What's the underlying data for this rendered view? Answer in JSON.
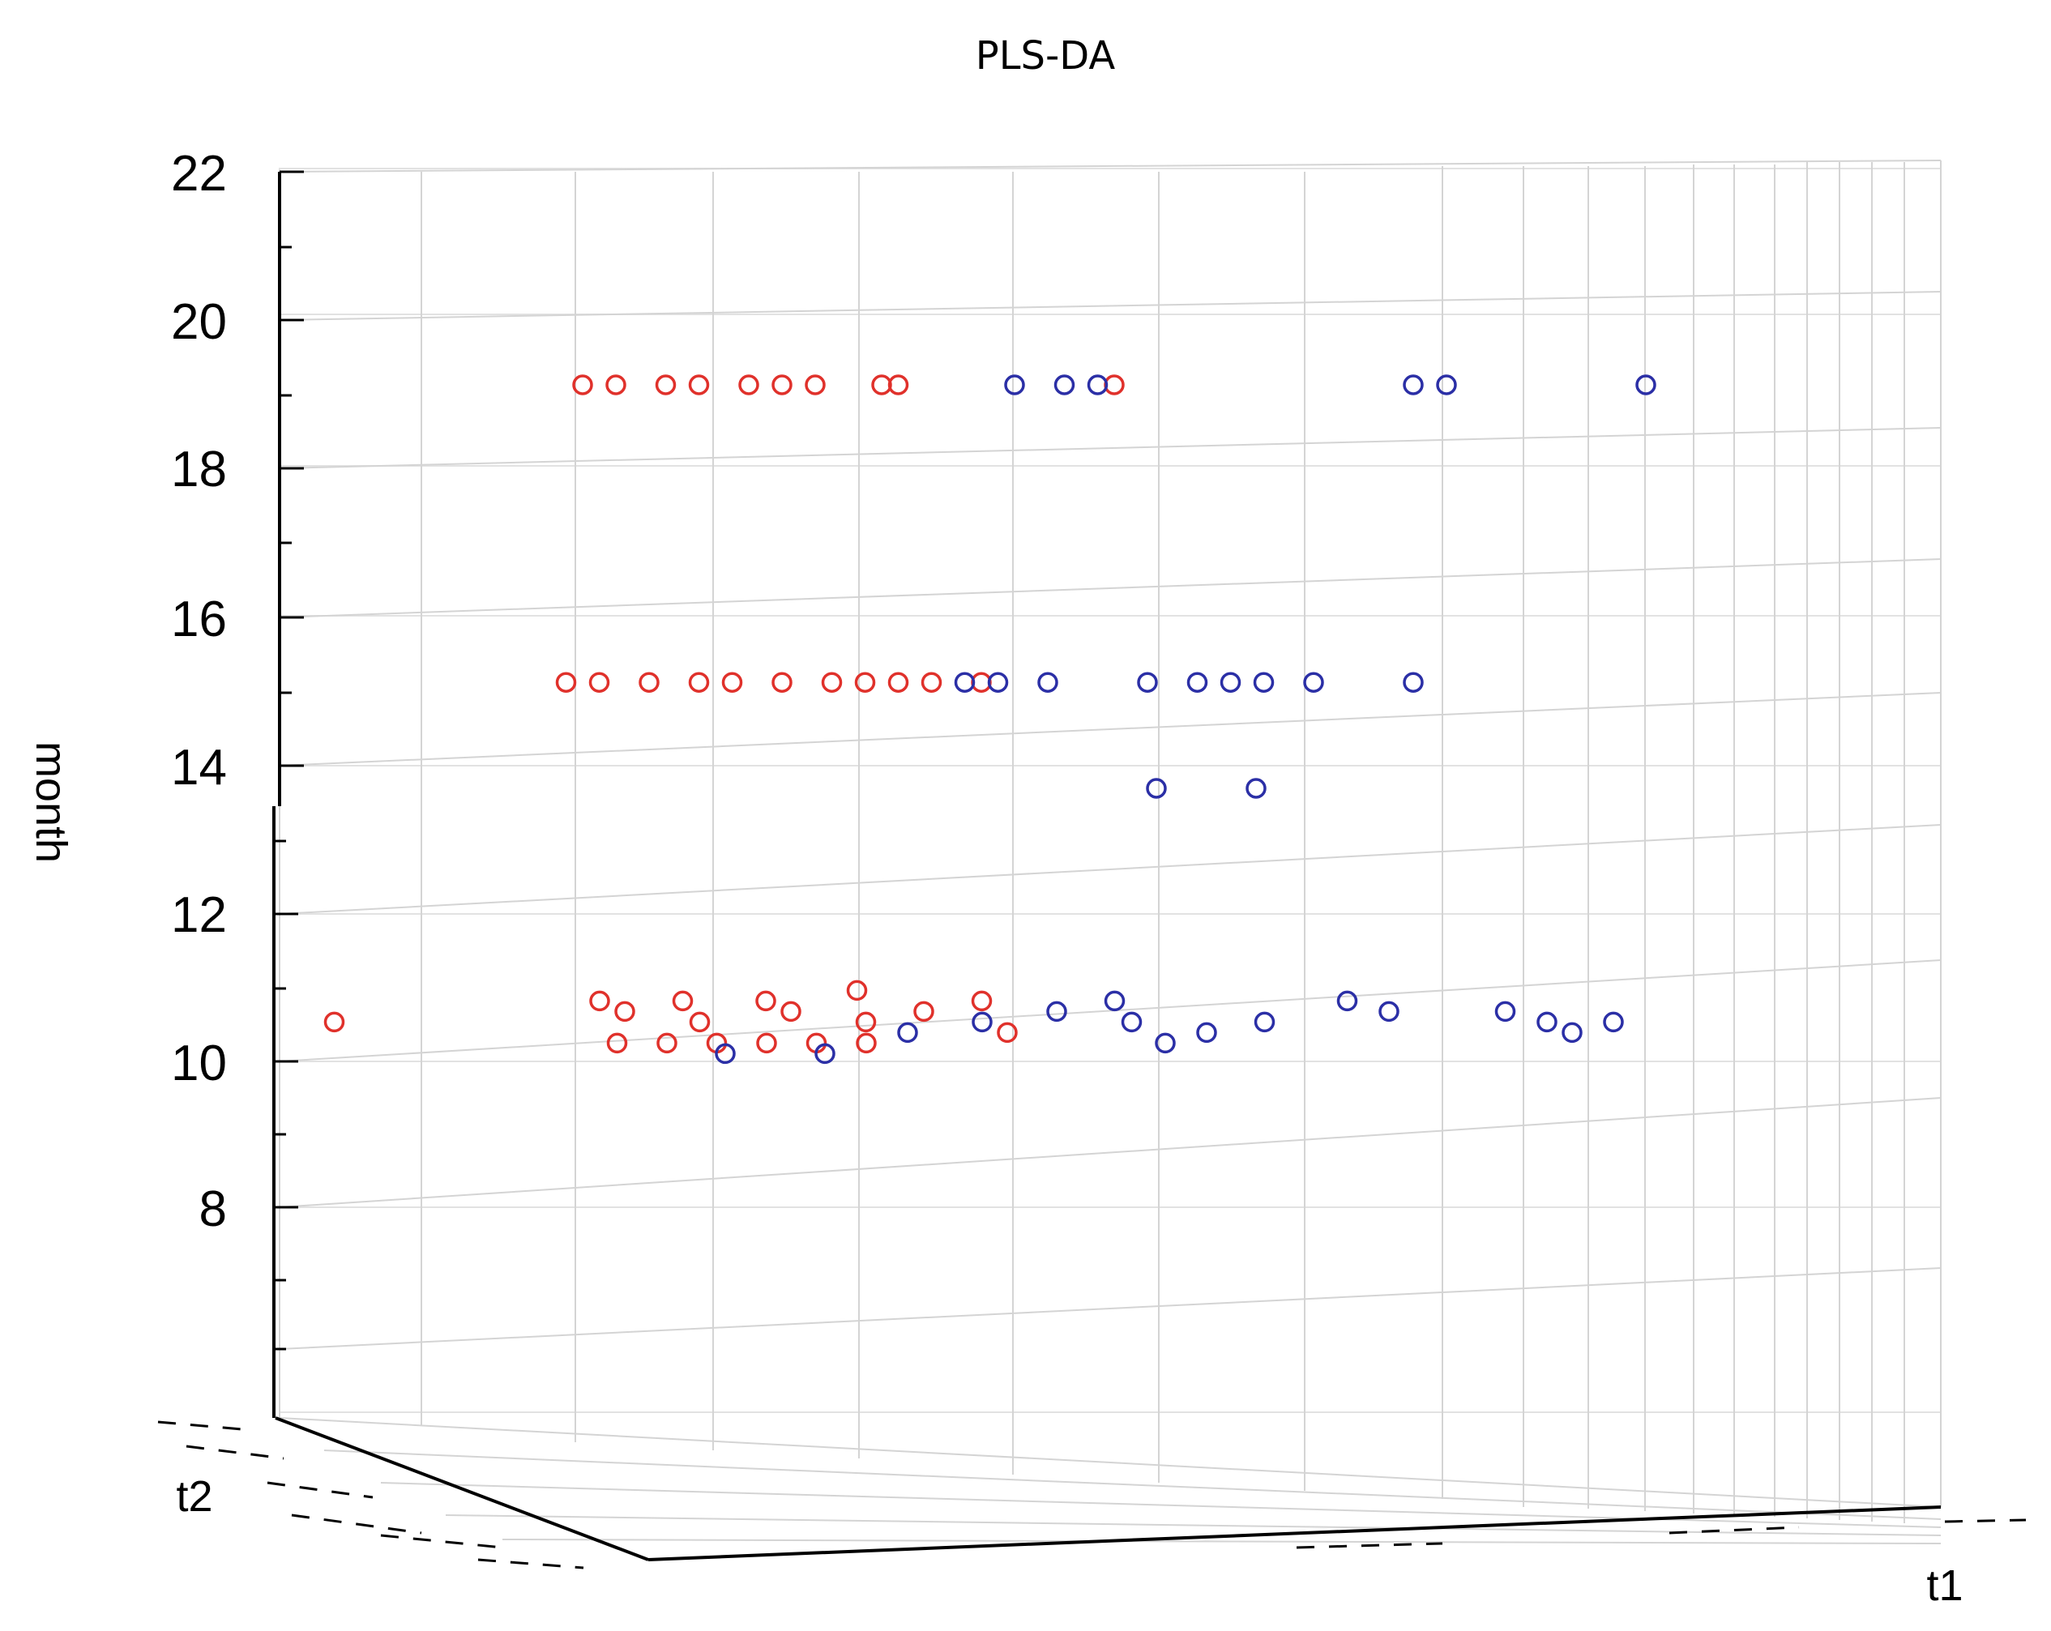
{
  "chart_data": {
    "type": "scatter",
    "subtype": "3d",
    "title": "PLS-DA",
    "zlabel": "month",
    "xlabel": "t1",
    "ylabel": "t2",
    "zlim": [
      6,
      22
    ],
    "z_ticks": [
      "8",
      "10",
      "12",
      "14",
      "16",
      "18",
      "20",
      "22"
    ],
    "marker": "open-circle",
    "series": [
      {
        "color": "#e0312b",
        "points": [
          {
            "t1": 0.09,
            "t2": 0.2,
            "month": 21
          },
          {
            "t1": 0.1,
            "t2": 0.2,
            "month": 21
          },
          {
            "t1": 0.13,
            "t2": 0.2,
            "month": 21
          },
          {
            "t1": 0.16,
            "t2": 0.2,
            "month": 21
          },
          {
            "t1": 0.18,
            "t2": 0.2,
            "month": 21
          },
          {
            "t1": 0.19,
            "t2": 0.2,
            "month": 21
          },
          {
            "t1": 0.21,
            "t2": 0.2,
            "month": 21
          },
          {
            "t1": 0.24,
            "t2": 0.2,
            "month": 21
          },
          {
            "t1": 0.26,
            "t2": 0.2,
            "month": 21
          },
          {
            "t1": 0.27,
            "t2": 0.2,
            "month": 21
          },
          {
            "t1": 0.29,
            "t2": 0.2,
            "month": 21
          },
          {
            "t1": 0.3,
            "t2": 0.2,
            "month": 21
          },
          {
            "t1": 0.08,
            "t2": 0.2,
            "month": 15
          },
          {
            "t1": 0.1,
            "t2": 0.2,
            "month": 15
          },
          {
            "t1": 0.13,
            "t2": 0.2,
            "month": 15
          },
          {
            "t1": 0.15,
            "t2": 0.2,
            "month": 15
          },
          {
            "t1": 0.18,
            "t2": 0.2,
            "month": 15
          },
          {
            "t1": 0.2,
            "t2": 0.2,
            "month": 15
          },
          {
            "t1": 0.22,
            "t2": 0.2,
            "month": 15
          },
          {
            "t1": 0.26,
            "t2": 0.2,
            "month": 15
          },
          {
            "t1": 0.27,
            "t2": 0.2,
            "month": 15
          },
          {
            "t1": 0.4,
            "t2": 0.2,
            "month": 15
          },
          {
            "t1": 0.07,
            "t2": 0.2,
            "month": 11
          },
          {
            "t1": 0.09,
            "t2": 0.2,
            "month": 11
          },
          {
            "t1": 0.12,
            "t2": 0.2,
            "month": 11
          },
          {
            "t1": 0.15,
            "t2": 0.2,
            "month": 11
          },
          {
            "t1": 0.17,
            "t2": 0.2,
            "month": 11
          },
          {
            "t1": 0.2,
            "t2": 0.2,
            "month": 11
          },
          {
            "t1": 0.23,
            "t2": 0.2,
            "month": 11
          },
          {
            "t1": 0.25,
            "t2": 0.2,
            "month": 11
          },
          {
            "t1": 0.27,
            "t2": 0.2,
            "month": 11
          },
          {
            "t1": 0.29,
            "t2": 0.2,
            "month": 11
          },
          {
            "t1": 0.32,
            "t2": 0.2,
            "month": 11
          },
          {
            "t1": 0.1,
            "t2": 0.4,
            "month": 7
          },
          {
            "t1": 0.12,
            "t2": 0.5,
            "month": 7
          },
          {
            "t1": 0.15,
            "t2": 0.4,
            "month": 7
          },
          {
            "t1": 0.17,
            "t2": 0.6,
            "month": 7
          },
          {
            "t1": 0.2,
            "t2": 0.4,
            "month": 7
          },
          {
            "t1": 0.22,
            "t2": 0.5,
            "month": 7
          },
          {
            "t1": 0.25,
            "t2": 0.3,
            "month": 7
          },
          {
            "t1": 0.27,
            "t2": 0.6,
            "month": 7
          },
          {
            "t1": 0.3,
            "t2": 0.5,
            "month": 7
          },
          {
            "t1": 0.33,
            "t2": 0.4,
            "month": 7
          },
          {
            "t1": 0.36,
            "t2": 0.7,
            "month": 7
          },
          {
            "t1": 0.13,
            "t2": 0.8,
            "month": 7
          },
          {
            "t1": 0.16,
            "t2": 0.8,
            "month": 7
          },
          {
            "t1": 0.19,
            "t2": 0.8,
            "month": 7
          },
          {
            "t1": 0.22,
            "t2": 0.8,
            "month": 7
          },
          {
            "t1": 0.25,
            "t2": 0.8,
            "month": 7
          },
          {
            "t1": 0.28,
            "t2": 0.8,
            "month": 7
          },
          {
            "t1": -0.05,
            "t2": 0.6,
            "month": 7
          }
        ]
      },
      {
        "color": "#2b2fa6",
        "points": [
          {
            "t1": 0.31,
            "t2": 0.2,
            "month": 21
          },
          {
            "t1": 0.34,
            "t2": 0.2,
            "month": 21
          },
          {
            "t1": 0.36,
            "t2": 0.2,
            "month": 21
          },
          {
            "t1": 0.44,
            "t2": 0.2,
            "month": 21
          },
          {
            "t1": 0.46,
            "t2": 0.2,
            "month": 21
          },
          {
            "t1": 0.48,
            "t2": 0.2,
            "month": 21
          },
          {
            "t1": 0.49,
            "t2": 0.2,
            "month": 21
          },
          {
            "t1": 0.5,
            "t2": 0.2,
            "month": 21
          },
          {
            "t1": 0.55,
            "t2": 0.2,
            "month": 21
          },
          {
            "t1": 0.34,
            "t2": 0.2,
            "month": 15
          },
          {
            "t1": 0.37,
            "t2": 0.2,
            "month": 15
          },
          {
            "t1": 0.39,
            "t2": 0.2,
            "month": 15
          },
          {
            "t1": 0.58,
            "t2": 0.2,
            "month": 15
          },
          {
            "t1": 0.6,
            "t2": 0.2,
            "month": 15
          },
          {
            "t1": 0.72,
            "t2": 0.2,
            "month": 15
          },
          {
            "t1": 0.31,
            "t2": 0.2,
            "month": 11
          },
          {
            "t1": 0.33,
            "t2": 0.2,
            "month": 11
          },
          {
            "t1": 0.36,
            "t2": 0.2,
            "month": 11
          },
          {
            "t1": 0.42,
            "t2": 0.2,
            "month": 11
          },
          {
            "t1": 0.45,
            "t2": 0.2,
            "month": 11
          },
          {
            "t1": 0.47,
            "t2": 0.2,
            "month": 11
          },
          {
            "t1": 0.49,
            "t2": 0.2,
            "month": 11
          },
          {
            "t1": 0.52,
            "t2": 0.2,
            "month": 11
          },
          {
            "t1": 0.58,
            "t2": 0.2,
            "month": 11
          },
          {
            "t1": 0.44,
            "t2": 0.5,
            "month": 10
          },
          {
            "t1": 0.5,
            "t2": 0.5,
            "month": 10
          },
          {
            "t1": 0.2,
            "t2": 0.9,
            "month": 7
          },
          {
            "t1": 0.26,
            "t2": 0.9,
            "month": 7
          },
          {
            "t1": 0.3,
            "t2": 0.7,
            "month": 7
          },
          {
            "t1": 0.34,
            "t2": 0.6,
            "month": 7
          },
          {
            "t1": 0.38,
            "t2": 0.5,
            "month": 7
          },
          {
            "t1": 0.41,
            "t2": 0.4,
            "month": 7
          },
          {
            "t1": 0.43,
            "t2": 0.6,
            "month": 7
          },
          {
            "t1": 0.46,
            "t2": 0.8,
            "month": 7
          },
          {
            "t1": 0.48,
            "t2": 0.7,
            "month": 7
          },
          {
            "t1": 0.51,
            "t2": 0.6,
            "month": 7
          },
          {
            "t1": 0.55,
            "t2": 0.4,
            "month": 7
          },
          {
            "t1": 0.58,
            "t2": 0.5,
            "month": 7
          },
          {
            "t1": 0.65,
            "t2": 0.5,
            "month": 7
          },
          {
            "t1": 0.68,
            "t2": 0.6,
            "month": 7
          },
          {
            "t1": 0.7,
            "t2": 0.7,
            "month": 7
          },
          {
            "t1": 0.72,
            "t2": 0.6,
            "month": 7
          }
        ]
      }
    ]
  }
}
